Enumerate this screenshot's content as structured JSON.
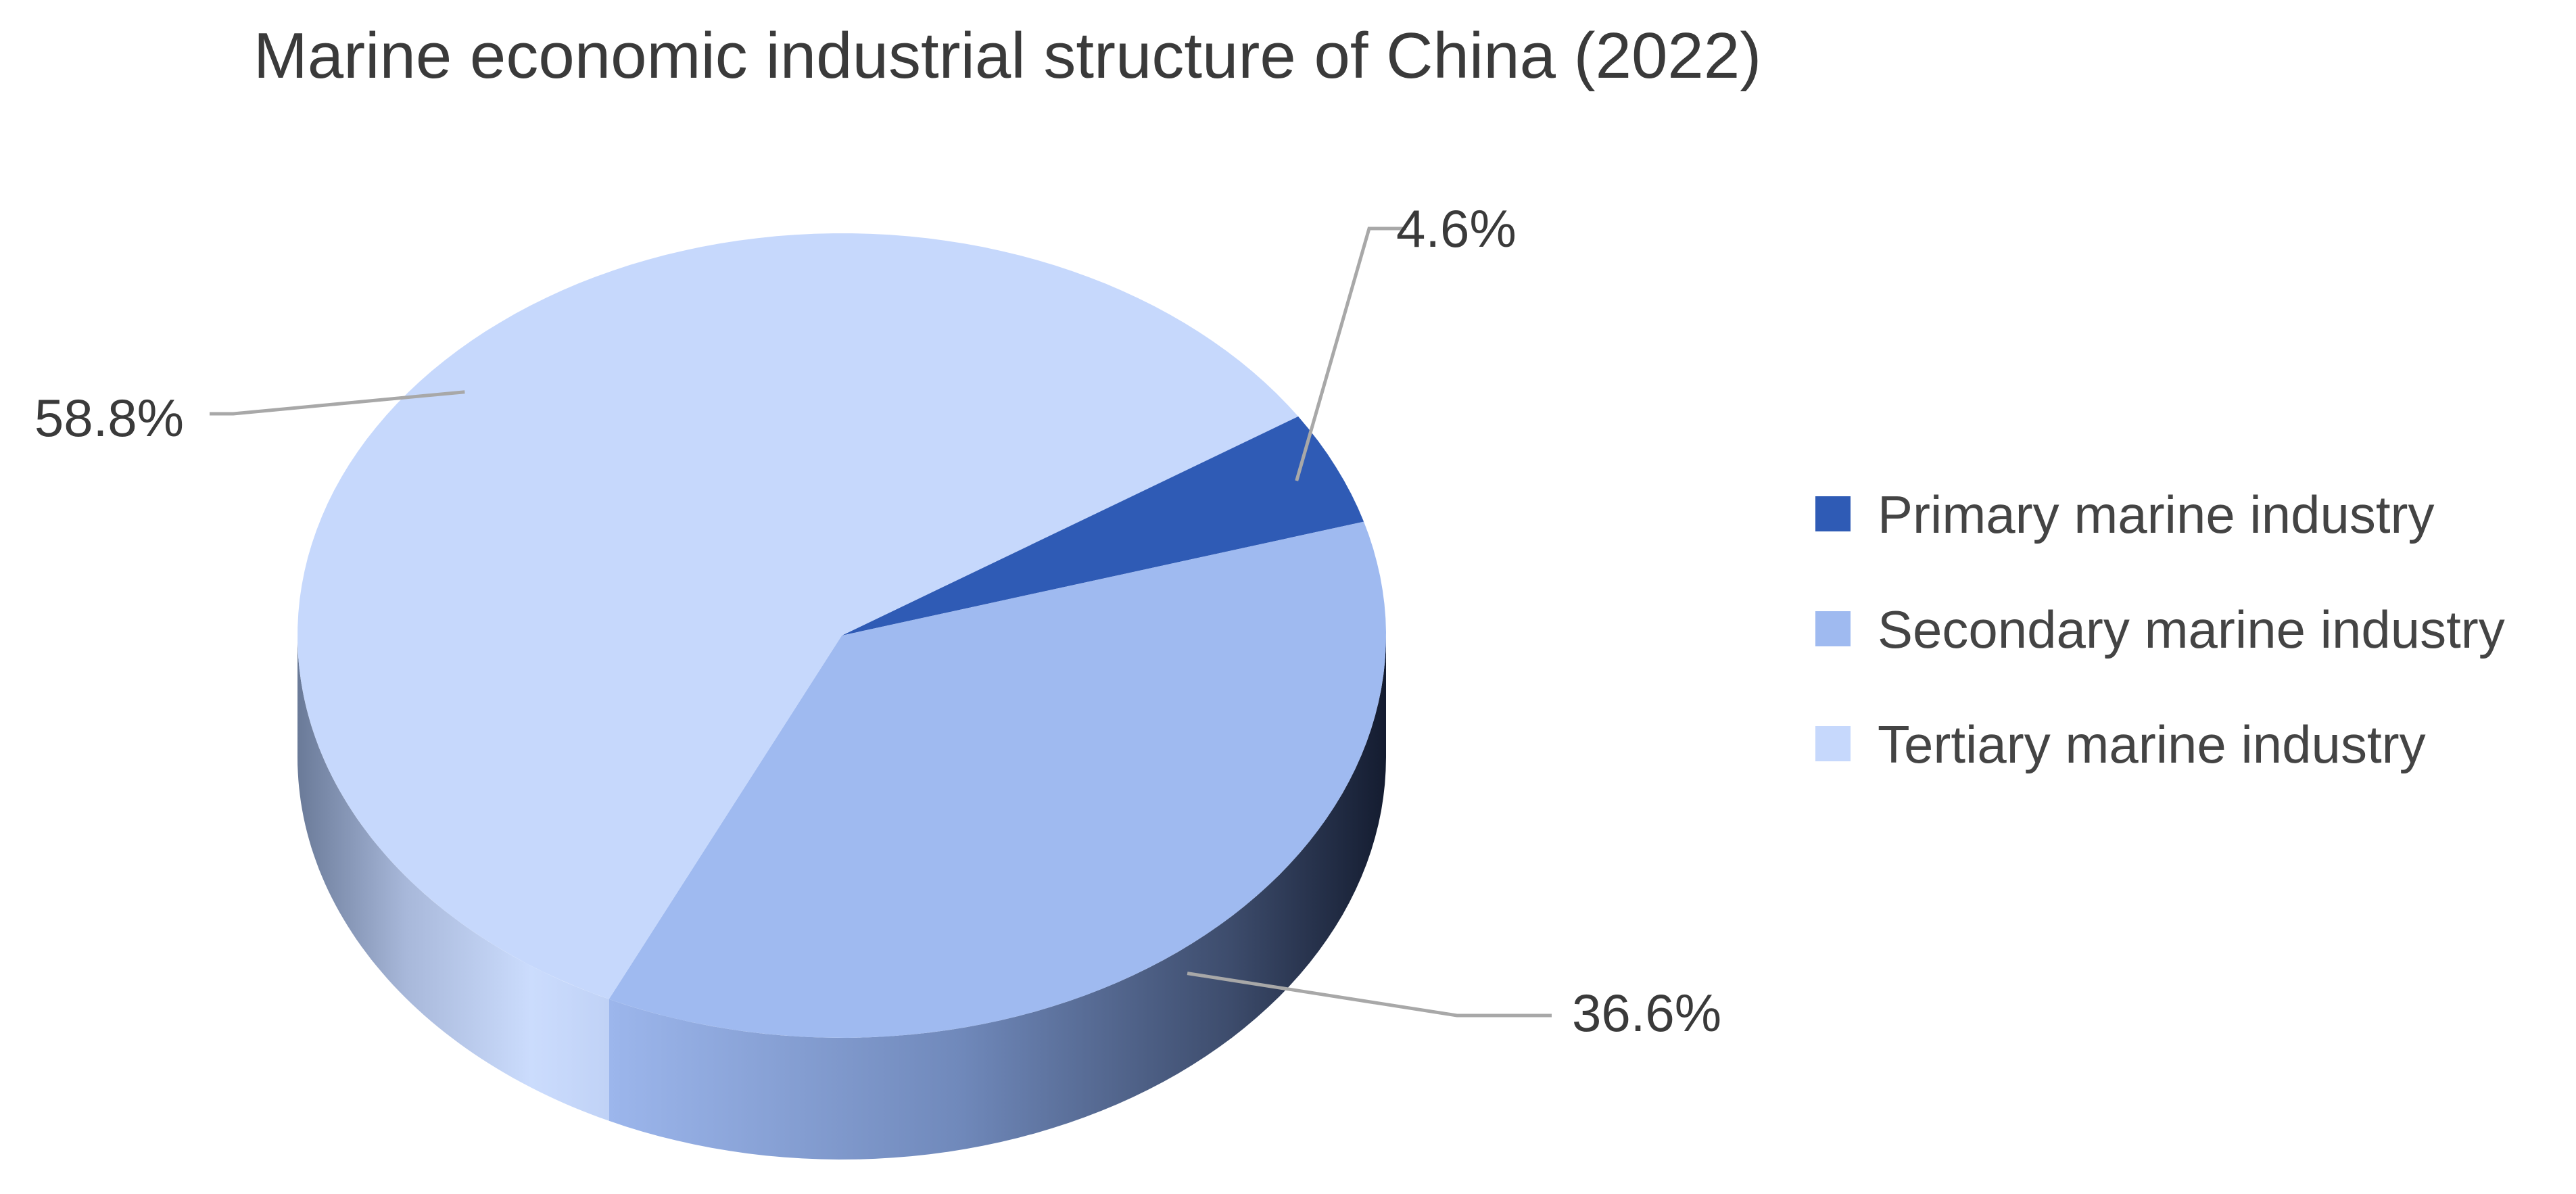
{
  "chart_data": {
    "type": "pie",
    "title": "Marine economic industrial structure of China (2022)",
    "unit": "%",
    "legend_position": "right",
    "slices": [
      {
        "label": "Primary marine industry",
        "value": 4.6,
        "display": "4.6%",
        "color": "#2f5bb5"
      },
      {
        "label": "Secondary marine industry",
        "value": 36.6,
        "display": "36.6%",
        "color": "#9fbaf0"
      },
      {
        "label": "Tertiary marine industry",
        "value": 58.8,
        "display": "58.8%",
        "color": "#c6d8fc"
      }
    ]
  }
}
